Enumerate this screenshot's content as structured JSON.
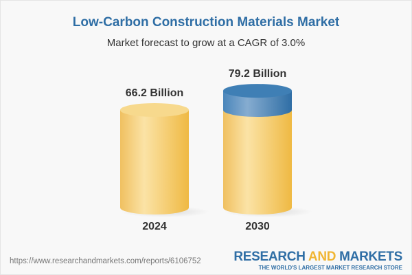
{
  "chart_data": {
    "type": "bar",
    "title": "Low-Carbon Construction Materials Market",
    "subtitle": "Market forecast to grow at a CAGR of 3.0%",
    "categories": [
      "2024",
      "2030"
    ],
    "values": [
      66.2,
      79.2
    ],
    "value_labels": [
      "66.2 Billion",
      "79.2 Billion"
    ],
    "colors": {
      "base": "#f2c15c",
      "growth": "#3f7fb5",
      "title": "#2f6ea5"
    }
  },
  "footer": {
    "url": "https://www.researchandmarkets.com/reports/6106752",
    "logo_research": "RESEARCH",
    "logo_and": "AND",
    "logo_markets": "MARKETS",
    "logo_tagline": "THE WORLD'S LARGEST MARKET RESEARCH STORE"
  }
}
